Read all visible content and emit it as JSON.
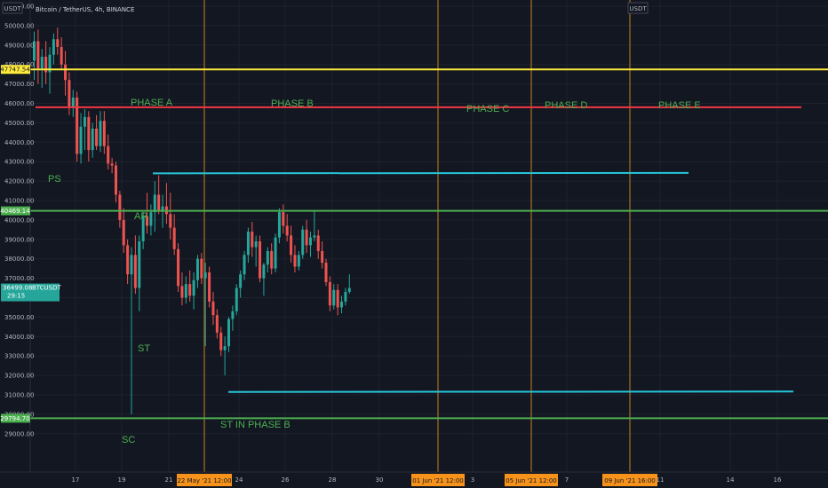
{
  "title": "Bitcoin / TetherUS, 4h, BINANCE",
  "symbol": "USDT",
  "colors": {
    "bg": "#131722",
    "up": "#26a69a",
    "down": "#ef5350",
    "yellow": "#ffeb3b",
    "red": "#f23645",
    "green": "#4caf50",
    "cyan": "#26c6da",
    "vline": "#c7831f",
    "tag_orange": "#f7931a"
  },
  "chart_data": {
    "type": "candlestick",
    "ylim": [
      28500,
      51000
    ],
    "y_ticks": [
      "51000.00",
      "50000.00",
      "49000.00",
      "48000.00",
      "47000.00",
      "46000.00",
      "45000.00",
      "44000.00",
      "43000.00",
      "42000.00",
      "41000.00",
      "40000.00",
      "39000.00",
      "38000.00",
      "37000.00",
      "36000.00",
      "35000.00",
      "34000.00",
      "33000.00",
      "32000.00",
      "31000.00",
      "30000.00",
      "29000.00"
    ],
    "x_ticks": [
      "17",
      "19",
      "21",
      "24",
      "26",
      "28",
      "30",
      "3",
      "7",
      "11",
      "14",
      "16"
    ],
    "x_tags": [
      "22 May '21   12:00",
      "01 Jun '21   12:00",
      "05 Jun '21   12:00",
      "09 Jun '21   16:00"
    ],
    "price_tags": {
      "yellow": "47747.54",
      "green_top": "40469.14",
      "current": "36499.08",
      "current_symbol": "BTCUSDT",
      "countdown": "29:15",
      "green_bottom": "29794.70"
    },
    "levels": {
      "yellow": 47747.54,
      "red": 45800,
      "green_top": 40469.14,
      "green_bottom": 29794.7,
      "cyan_top": 42400,
      "cyan_bottom": 31150
    },
    "phases": [
      "PHASE A",
      "PHASE B",
      "PHASE C",
      "PHASE D",
      "PHASE E"
    ],
    "events": [
      "PS",
      "AR",
      "ST",
      "SC",
      "ST IN PHASE B"
    ],
    "candles": [
      [
        48200,
        49700,
        47200,
        49200
      ],
      [
        49200,
        49800,
        47000,
        47800
      ],
      [
        47800,
        48800,
        46800,
        48400
      ],
      [
        48400,
        49200,
        47000,
        47600
      ],
      [
        47600,
        48900,
        46500,
        48500
      ],
      [
        48500,
        49600,
        48000,
        49300
      ],
      [
        49300,
        49900,
        48500,
        48900
      ],
      [
        48900,
        49400,
        47800,
        48000
      ],
      [
        48000,
        48700,
        46400,
        47200
      ],
      [
        47200,
        47600,
        45400,
        45800
      ],
      [
        45800,
        46700,
        45300,
        46300
      ],
      [
        46300,
        46600,
        43000,
        43400
      ],
      [
        43400,
        45500,
        42900,
        44800
      ],
      [
        44800,
        45700,
        43600,
        45300
      ],
      [
        45300,
        45600,
        43000,
        43600
      ],
      [
        43600,
        45000,
        43200,
        44700
      ],
      [
        44700,
        45400,
        43600,
        43800
      ],
      [
        43800,
        45600,
        43500,
        45100
      ],
      [
        45100,
        45600,
        43400,
        43800
      ],
      [
        43800,
        44400,
        42600,
        42900
      ],
      [
        42900,
        43200,
        42400,
        42800
      ],
      [
        42800,
        43000,
        40900,
        41300
      ],
      [
        41300,
        41500,
        39600,
        40000
      ],
      [
        40000,
        40600,
        38300,
        38700
      ],
      [
        38700,
        39000,
        36700,
        37200
      ],
      [
        37200,
        38600,
        30000,
        38200
      ],
      [
        38200,
        39200,
        36200,
        36500
      ],
      [
        36500,
        39200,
        35300,
        38900
      ],
      [
        38900,
        40400,
        38500,
        40200
      ],
      [
        40200,
        41400,
        39300,
        39700
      ],
      [
        39700,
        40800,
        39200,
        40400
      ],
      [
        40400,
        42000,
        39400,
        41300
      ],
      [
        41300,
        42300,
        40300,
        40500
      ],
      [
        40500,
        41300,
        39600,
        40700
      ],
      [
        40700,
        41900,
        39800,
        40300
      ],
      [
        40300,
        41400,
        39000,
        39600
      ],
      [
        39600,
        40300,
        38200,
        38500
      ],
      [
        38500,
        38800,
        36300,
        36600
      ],
      [
        36600,
        37300,
        35600,
        36000
      ],
      [
        36000,
        37100,
        35700,
        36700
      ],
      [
        36700,
        37400,
        35800,
        36100
      ],
      [
        36100,
        37300,
        35400,
        36900
      ],
      [
        36900,
        38200,
        36500,
        38000
      ],
      [
        38000,
        38300,
        36700,
        37000
      ],
      [
        37000,
        37800,
        33500,
        37300
      ],
      [
        37300,
        37600,
        35500,
        35800
      ],
      [
        35800,
        36300,
        34600,
        35100
      ],
      [
        35100,
        35400,
        33900,
        34200
      ],
      [
        34200,
        34500,
        33000,
        33300
      ],
      [
        33300,
        34000,
        32000,
        33500
      ],
      [
        33500,
        35000,
        33200,
        34900
      ],
      [
        34900,
        35600,
        34300,
        35300
      ],
      [
        35300,
        36700,
        35100,
        36500
      ],
      [
        36500,
        37400,
        36000,
        37200
      ],
      [
        37200,
        38400,
        36900,
        38200
      ],
      [
        38200,
        39600,
        37800,
        39400
      ],
      [
        39400,
        39900,
        38100,
        38600
      ],
      [
        38600,
        39200,
        37600,
        38900
      ],
      [
        38900,
        39200,
        36800,
        37000
      ],
      [
        37000,
        37800,
        36100,
        37700
      ],
      [
        37700,
        38600,
        37300,
        38400
      ],
      [
        38400,
        38800,
        37200,
        37500
      ],
      [
        37500,
        39300,
        37300,
        39100
      ],
      [
        39100,
        40600,
        38800,
        40400
      ],
      [
        40400,
        40800,
        39300,
        39700
      ],
      [
        39700,
        40300,
        38900,
        39200
      ],
      [
        39200,
        39700,
        37800,
        38200
      ],
      [
        38200,
        38700,
        37300,
        37600
      ],
      [
        37600,
        38400,
        37400,
        38200
      ],
      [
        38200,
        39700,
        38000,
        39500
      ],
      [
        39500,
        40000,
        38300,
        38700
      ],
      [
        38700,
        39400,
        38100,
        39100
      ],
      [
        39100,
        40500,
        38900,
        39200
      ],
      [
        39200,
        39500,
        38000,
        38400
      ],
      [
        38400,
        38900,
        37500,
        37800
      ],
      [
        37800,
        38000,
        36600,
        36800
      ],
      [
        36800,
        37100,
        35300,
        35600
      ],
      [
        35600,
        36700,
        35400,
        36400
      ],
      [
        36400,
        36700,
        35100,
        35500
      ],
      [
        35500,
        36100,
        35200,
        35800
      ],
      [
        35800,
        36500,
        35600,
        36300
      ],
      [
        36300,
        37200,
        36200,
        36499
      ]
    ]
  }
}
